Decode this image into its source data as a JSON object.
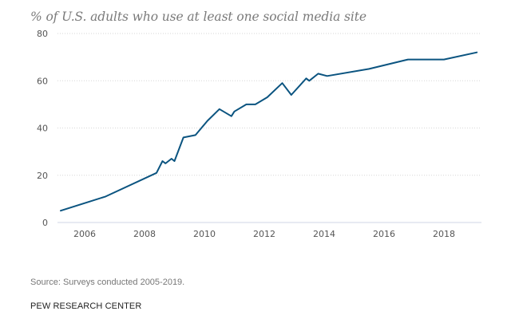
{
  "chart_data": {
    "type": "line",
    "title": "% of U.S. adults who use at least one social media site",
    "xlabel": "",
    "ylabel": "",
    "xlim": [
      2005.0,
      2019.2
    ],
    "ylim": [
      0,
      80
    ],
    "xticks": [
      2006,
      2008,
      2010,
      2012,
      2014,
      2016,
      2018
    ],
    "yticks": [
      0,
      20,
      40,
      60,
      80
    ],
    "grid": "horizontal-dotted",
    "legend": "none",
    "line_color": "#0b5480",
    "series": [
      {
        "name": "% of U.S. adults who use at least one social media site",
        "points": [
          [
            2005.2,
            5
          ],
          [
            2006.7,
            11
          ],
          [
            2008.4,
            21
          ],
          [
            2008.6,
            26
          ],
          [
            2008.7,
            25
          ],
          [
            2008.9,
            27
          ],
          [
            2009.0,
            26
          ],
          [
            2009.3,
            36
          ],
          [
            2009.7,
            37
          ],
          [
            2010.1,
            43
          ],
          [
            2010.5,
            48
          ],
          [
            2010.9,
            45
          ],
          [
            2011.0,
            47
          ],
          [
            2011.4,
            50
          ],
          [
            2011.7,
            50
          ],
          [
            2012.1,
            53
          ],
          [
            2012.6,
            59
          ],
          [
            2012.9,
            54
          ],
          [
            2013.4,
            61
          ],
          [
            2013.5,
            60
          ],
          [
            2013.8,
            63
          ],
          [
            2014.1,
            62
          ],
          [
            2015.5,
            65
          ],
          [
            2016.8,
            69
          ],
          [
            2018.0,
            69
          ],
          [
            2019.1,
            72
          ]
        ]
      }
    ]
  },
  "footer": {
    "source": "Source: Surveys conducted 2005-2019.",
    "brand": "PEW RESEARCH CENTER"
  }
}
